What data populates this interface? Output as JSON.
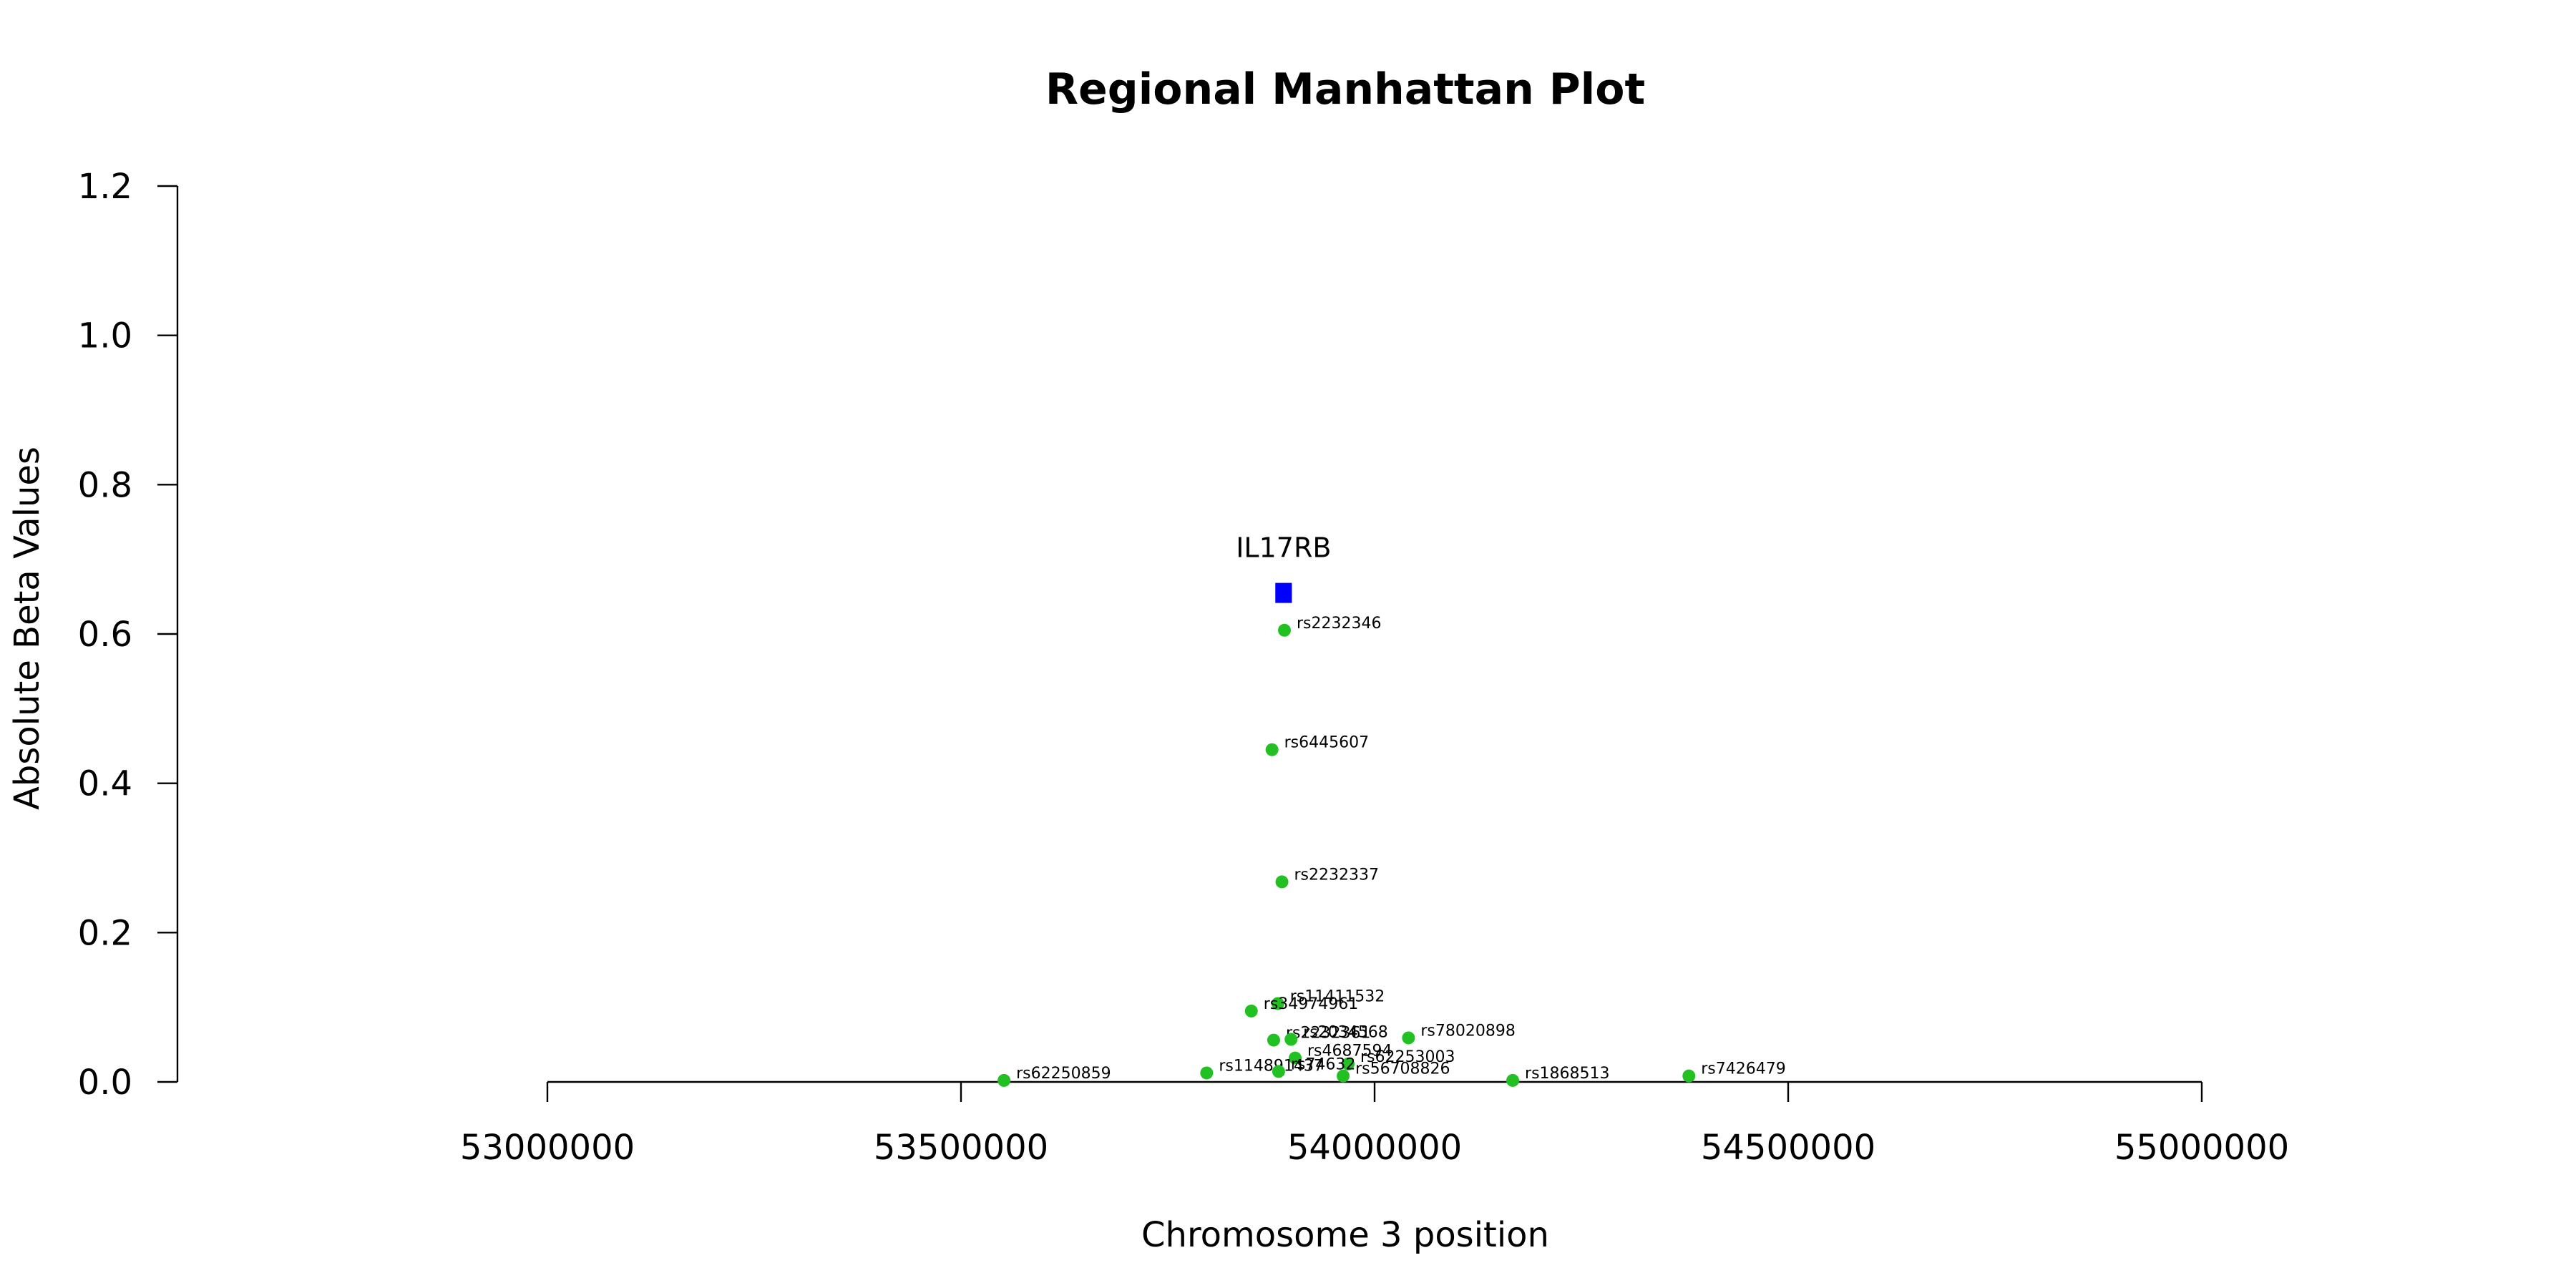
{
  "chart_data": {
    "type": "scatter",
    "title": "Regional Manhattan Plot",
    "xlabel": "Chromosome 3 position",
    "ylabel": "Absolute Beta Values",
    "xlim": [
      53000000,
      55000000
    ],
    "ylim": [
      0,
      1.2
    ],
    "x_ticks": [
      53000000,
      53500000,
      54000000,
      54500000,
      55000000
    ],
    "x_tick_labels": [
      "53000000",
      "53500000",
      "54000000",
      "54500000",
      "55000000"
    ],
    "y_ticks": [
      0,
      0.2,
      0.4,
      0.6,
      0.8,
      1.0,
      1.2
    ],
    "y_tick_labels": [
      "0.0",
      "0.2",
      "0.4",
      "0.6",
      "0.8",
      "1.0",
      "1.2"
    ],
    "grid": false,
    "point_color": "#22c022",
    "gene_color": "#0000ff",
    "gene": {
      "name": "IL17RB",
      "start": 53880000,
      "end": 53900000,
      "y": 0.655
    },
    "points": [
      {
        "label": "rs2232346",
        "x": 53891000,
        "y": 0.605
      },
      {
        "label": "rs6445607",
        "x": 53876000,
        "y": 0.445
      },
      {
        "label": "rs2232337",
        "x": 53888000,
        "y": 0.268
      },
      {
        "label": "rs11411532",
        "x": 53883000,
        "y": 0.105
      },
      {
        "label": "rs34974961",
        "x": 53851000,
        "y": 0.095
      },
      {
        "label": "rs78020898",
        "x": 54041000,
        "y": 0.059
      },
      {
        "label": "rs2232361",
        "x": 53878000,
        "y": 0.056
      },
      {
        "label": "rs2034568",
        "x": 53899000,
        "y": 0.057
      },
      {
        "label": "rs4687594",
        "x": 53904000,
        "y": 0.032
      },
      {
        "label": "rs62253003",
        "x": 53968000,
        "y": 0.024
      },
      {
        "label": "rs56708826",
        "x": 53962000,
        "y": 0.008
      },
      {
        "label": "rs114891437",
        "x": 53797000,
        "y": 0.012
      },
      {
        "label": "rs74632",
        "x": 53884000,
        "y": 0.014
      },
      {
        "label": "rs62250859",
        "x": 53552000,
        "y": 0.002
      },
      {
        "label": "rs1868513",
        "x": 54167000,
        "y": 0.002
      },
      {
        "label": "rs7426479",
        "x": 54380000,
        "y": 0.008
      }
    ]
  }
}
